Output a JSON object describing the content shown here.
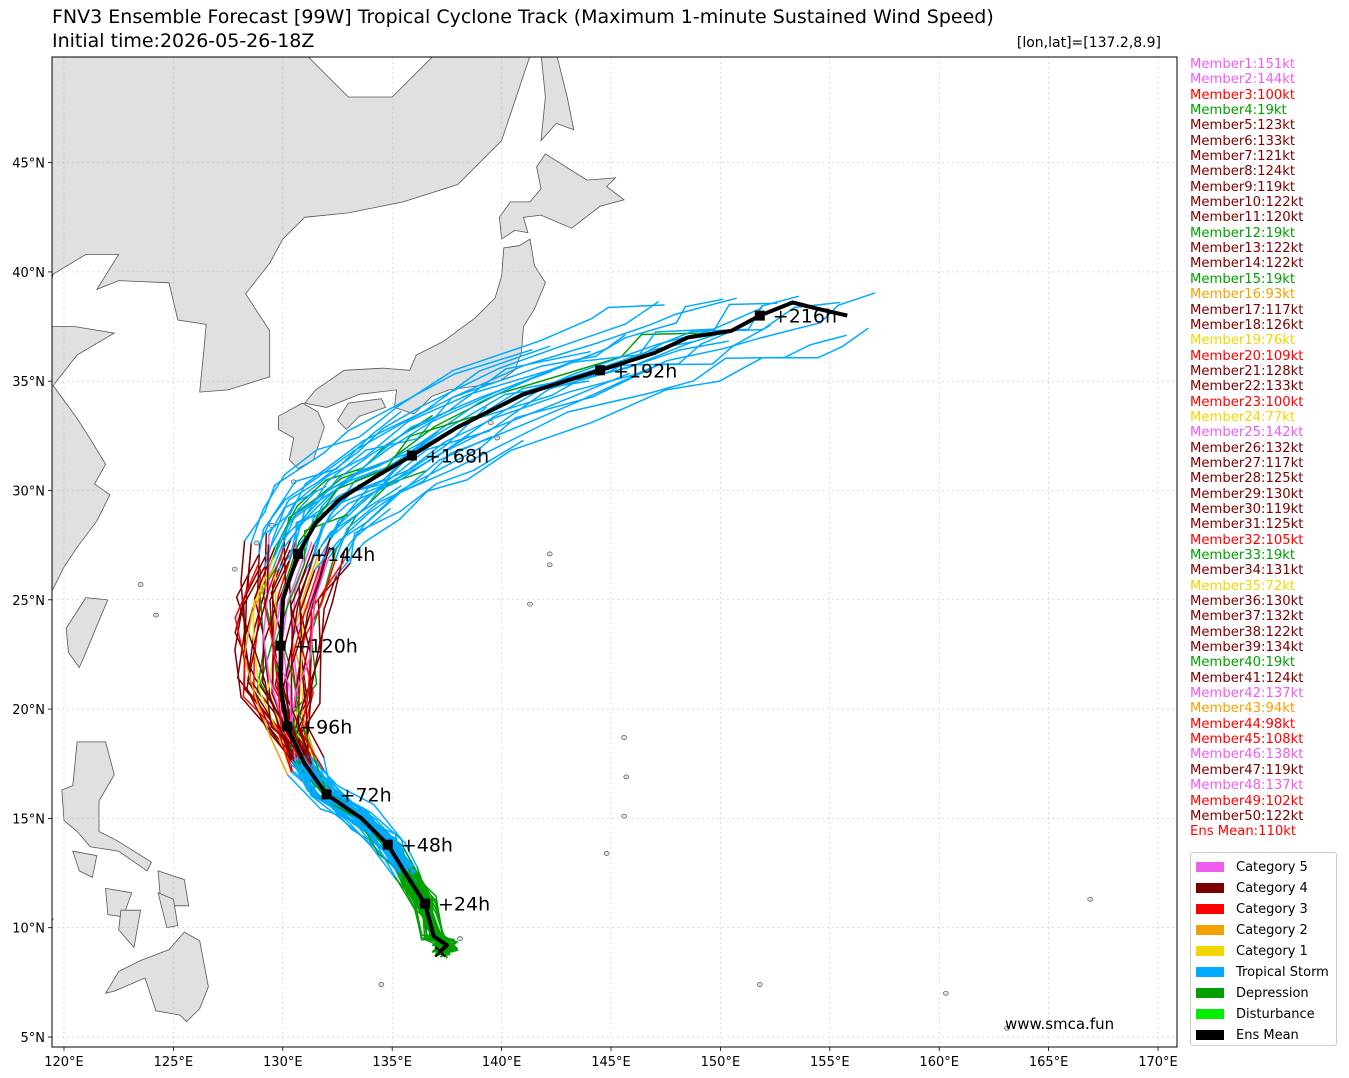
{
  "title": "FNV3 Ensemble Forecast [99W] Tropical Cyclone Track (Maximum 1-minute Sustained Wind Speed)",
  "initial_time": "Initial time:2026-05-26-18Z",
  "coord_label": "[lon,lat]=[137.2,8.9]",
  "watermark": "www.smca.fun",
  "axes": {
    "lon_ticks": [
      "120°E",
      "125°E",
      "130°E",
      "135°E",
      "140°E",
      "145°E",
      "150°E",
      "155°E",
      "160°E",
      "165°E",
      "170°E"
    ],
    "lat_ticks": [
      "5°N",
      "10°N",
      "15°N",
      "20°N",
      "25°N",
      "30°N",
      "35°N",
      "40°N",
      "45°N"
    ],
    "lon_range": [
      119.5,
      171.0
    ],
    "lat_range": [
      4.5,
      49.8
    ]
  },
  "colors": {
    "category5": "#ee5df0",
    "category4": "#7b0000",
    "category3": "#ff0000",
    "category2": "#f2a200",
    "category1": "#f2d600",
    "tropical_storm": "#00aaff",
    "depression": "#00a000",
    "disturbance": "#00ee00",
    "ens_mean": "#000000",
    "land": "#e0e0e0"
  },
  "members": [
    {
      "label": "Member1:151kt",
      "cat": "category5"
    },
    {
      "label": "Member2:144kt",
      "cat": "category5"
    },
    {
      "label": "Member3:100kt",
      "cat": "category3"
    },
    {
      "label": "Member4:19kt",
      "cat": "depression"
    },
    {
      "label": "Member5:123kt",
      "cat": "category4"
    },
    {
      "label": "Member6:133kt",
      "cat": "category4"
    },
    {
      "label": "Member7:121kt",
      "cat": "category4"
    },
    {
      "label": "Member8:124kt",
      "cat": "category4"
    },
    {
      "label": "Member9:119kt",
      "cat": "category4"
    },
    {
      "label": "Member10:122kt",
      "cat": "category4"
    },
    {
      "label": "Member11:120kt",
      "cat": "category4"
    },
    {
      "label": "Member12:19kt",
      "cat": "depression"
    },
    {
      "label": "Member13:122kt",
      "cat": "category4"
    },
    {
      "label": "Member14:122kt",
      "cat": "category4"
    },
    {
      "label": "Member15:19kt",
      "cat": "depression"
    },
    {
      "label": "Member16:93kt",
      "cat": "category2"
    },
    {
      "label": "Member17:117kt",
      "cat": "category4"
    },
    {
      "label": "Member18:126kt",
      "cat": "category4"
    },
    {
      "label": "Member19:76kt",
      "cat": "category1"
    },
    {
      "label": "Member20:109kt",
      "cat": "category3"
    },
    {
      "label": "Member21:128kt",
      "cat": "category4"
    },
    {
      "label": "Member22:133kt",
      "cat": "category4"
    },
    {
      "label": "Member23:100kt",
      "cat": "category3"
    },
    {
      "label": "Member24:77kt",
      "cat": "category1"
    },
    {
      "label": "Member25:142kt",
      "cat": "category5"
    },
    {
      "label": "Member26:132kt",
      "cat": "category4"
    },
    {
      "label": "Member27:117kt",
      "cat": "category4"
    },
    {
      "label": "Member28:125kt",
      "cat": "category4"
    },
    {
      "label": "Member29:130kt",
      "cat": "category4"
    },
    {
      "label": "Member30:119kt",
      "cat": "category4"
    },
    {
      "label": "Member31:125kt",
      "cat": "category4"
    },
    {
      "label": "Member32:105kt",
      "cat": "category3"
    },
    {
      "label": "Member33:19kt",
      "cat": "depression"
    },
    {
      "label": "Member34:131kt",
      "cat": "category4"
    },
    {
      "label": "Member35:72kt",
      "cat": "category1"
    },
    {
      "label": "Member36:130kt",
      "cat": "category4"
    },
    {
      "label": "Member37:132kt",
      "cat": "category4"
    },
    {
      "label": "Member38:122kt",
      "cat": "category4"
    },
    {
      "label": "Member39:134kt",
      "cat": "category4"
    },
    {
      "label": "Member40:19kt",
      "cat": "depression"
    },
    {
      "label": "Member41:124kt",
      "cat": "category4"
    },
    {
      "label": "Member42:137kt",
      "cat": "category5"
    },
    {
      "label": "Member43:94kt",
      "cat": "category2"
    },
    {
      "label": "Member44:98kt",
      "cat": "category3"
    },
    {
      "label": "Member45:108kt",
      "cat": "category3"
    },
    {
      "label": "Member46:138kt",
      "cat": "category5"
    },
    {
      "label": "Member47:119kt",
      "cat": "category4"
    },
    {
      "label": "Member48:137kt",
      "cat": "category5"
    },
    {
      "label": "Member49:102kt",
      "cat": "category3"
    },
    {
      "label": "Member50:122kt",
      "cat": "category4"
    },
    {
      "label": "Ens Mean:110kt",
      "cat": "category3"
    }
  ],
  "legend": [
    {
      "label": "Category 5",
      "cat": "category5"
    },
    {
      "label": "Category 4",
      "cat": "category4"
    },
    {
      "label": "Category 3",
      "cat": "category3"
    },
    {
      "label": "Category 2",
      "cat": "category2"
    },
    {
      "label": "Category 1",
      "cat": "category1"
    },
    {
      "label": "Tropical Storm",
      "cat": "tropical_storm"
    },
    {
      "label": "Depression",
      "cat": "depression"
    },
    {
      "label": "Disturbance",
      "cat": "disturbance"
    },
    {
      "label": "Ens Mean",
      "cat": "ens_mean"
    }
  ],
  "ens_mean_track": [
    [
      137.2,
      8.9
    ],
    [
      137.5,
      9.2
    ],
    [
      136.9,
      9.6
    ],
    [
      136.5,
      11.1
    ],
    [
      135.6,
      12.5
    ],
    [
      134.8,
      13.8
    ],
    [
      133.6,
      15.0
    ],
    [
      132.0,
      16.1
    ],
    [
      131.0,
      17.5
    ],
    [
      130.2,
      19.2
    ],
    [
      129.9,
      21.0
    ],
    [
      129.9,
      22.9
    ],
    [
      130.0,
      25.0
    ],
    [
      130.7,
      27.1
    ],
    [
      131.5,
      28.5
    ],
    [
      132.6,
      29.6
    ],
    [
      134.2,
      30.6
    ],
    [
      135.9,
      31.6
    ],
    [
      138.0,
      32.9
    ],
    [
      141.0,
      34.4
    ],
    [
      144.5,
      35.5
    ],
    [
      147.0,
      36.3
    ],
    [
      148.5,
      37.0
    ],
    [
      150.5,
      37.3
    ],
    [
      151.8,
      38.0
    ],
    [
      153.3,
      38.6
    ],
    [
      154.5,
      38.3
    ],
    [
      155.8,
      38.0
    ]
  ],
  "ens_mean_markers": [
    {
      "lon": 136.5,
      "lat": 11.1,
      "label": "+24h"
    },
    {
      "lon": 134.8,
      "lat": 13.8,
      "label": "+48h"
    },
    {
      "lon": 132.0,
      "lat": 16.1,
      "label": "+72h"
    },
    {
      "lon": 130.2,
      "lat": 19.2,
      "label": "+96h"
    },
    {
      "lon": 129.9,
      "lat": 22.9,
      "label": "+120h"
    },
    {
      "lon": 130.7,
      "lat": 27.1,
      "label": "+144h"
    },
    {
      "lon": 135.9,
      "lat": 31.6,
      "label": "+168h"
    },
    {
      "lon": 144.5,
      "lat": 35.5,
      "label": "+192h"
    },
    {
      "lon": 151.8,
      "lat": 38.0,
      "label": "+216h"
    }
  ]
}
